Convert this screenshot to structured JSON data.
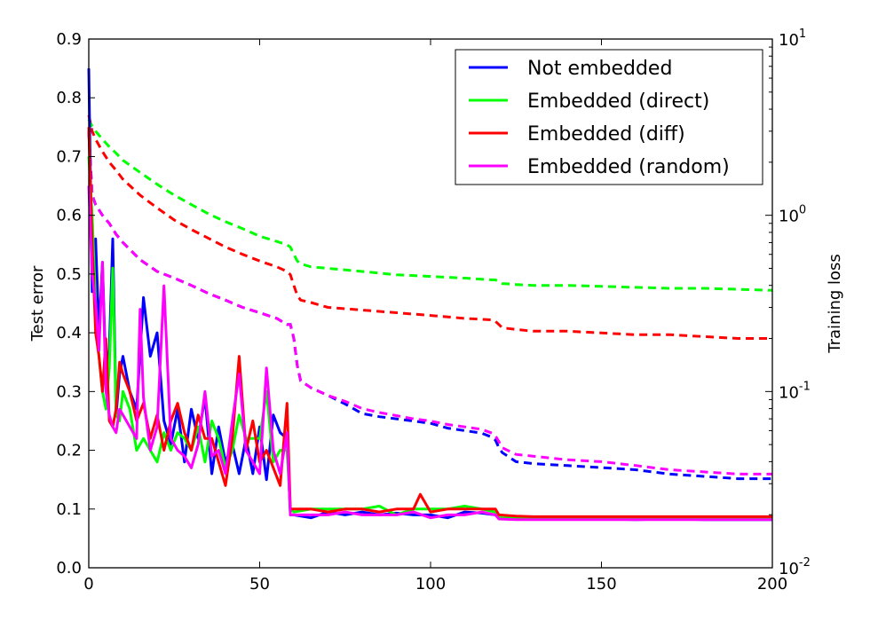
{
  "chart_data": {
    "type": "line",
    "xlabel": "",
    "ylabel": "Test error",
    "y2label": "Training loss",
    "xlim": [
      0,
      200
    ],
    "ylim": [
      0.0,
      0.9
    ],
    "y2lim_log10": [
      -2,
      1
    ],
    "y2scale": "log",
    "grid": false,
    "legend_position": "top-right",
    "x_ticks": [
      0,
      50,
      100,
      150,
      200
    ],
    "x_tick_labels": [
      "0",
      "50",
      "100",
      "150",
      "200"
    ],
    "y_ticks": [
      0.0,
      0.1,
      0.2,
      0.3,
      0.4,
      0.5,
      0.6,
      0.7,
      0.8,
      0.9
    ],
    "y_tick_labels": [
      "0.0",
      "0.1",
      "0.2",
      "0.3",
      "0.4",
      "0.5",
      "0.6",
      "0.7",
      "0.8",
      "0.9"
    ],
    "y2_ticks": [
      -2,
      -1,
      0,
      1
    ],
    "y2_tick_bases": [
      "10",
      "10",
      "10",
      "10"
    ],
    "y2_tick_exponents": [
      "-2",
      "-1",
      "0",
      "1"
    ],
    "colors": {
      "not_embedded": "#0000ff",
      "direct": "#00ff00",
      "diff": "#ff0000",
      "random": "#ff00ff"
    },
    "series": [
      {
        "name": "Not embedded",
        "color": "#0000ff",
        "test_error": {
          "x": [
            0,
            1,
            2,
            3,
            4,
            5,
            6,
            7,
            8,
            9,
            10,
            12,
            14,
            16,
            18,
            20,
            22,
            24,
            26,
            28,
            30,
            32,
            34,
            36,
            38,
            40,
            42,
            44,
            46,
            48,
            50,
            52,
            54,
            56,
            58,
            59,
            60,
            65,
            70,
            75,
            80,
            85,
            90,
            95,
            100,
            105,
            110,
            115,
            119,
            120,
            125,
            130,
            140,
            150,
            160,
            170,
            180,
            190,
            200
          ],
          "y": [
            0.85,
            0.47,
            0.56,
            0.4,
            0.52,
            0.33,
            0.37,
            0.56,
            0.26,
            0.33,
            0.36,
            0.3,
            0.27,
            0.46,
            0.36,
            0.4,
            0.25,
            0.21,
            0.27,
            0.18,
            0.27,
            0.22,
            0.29,
            0.16,
            0.24,
            0.18,
            0.21,
            0.16,
            0.22,
            0.16,
            0.24,
            0.15,
            0.26,
            0.23,
            0.22,
            0.09,
            0.09,
            0.085,
            0.095,
            0.09,
            0.095,
            0.09,
            0.093,
            0.09,
            0.09,
            0.085,
            0.095,
            0.093,
            0.09,
            0.085,
            0.083,
            0.083,
            0.083,
            0.083,
            0.082,
            0.083,
            0.082,
            0.082,
            0.082
          ]
        },
        "training_loss": {
          "x": [
            0,
            1,
            2,
            4,
            6,
            8,
            10,
            15,
            20,
            25,
            30,
            35,
            40,
            45,
            50,
            55,
            58,
            59,
            60,
            61,
            62,
            65,
            70,
            75,
            80,
            85,
            90,
            95,
            100,
            105,
            110,
            115,
            118,
            119,
            120,
            121,
            125,
            130,
            140,
            150,
            160,
            170,
            180,
            190,
            200
          ],
          "y": [
            3.0,
            1.3,
            1.15,
            1.0,
            0.9,
            0.78,
            0.7,
            0.56,
            0.48,
            0.44,
            0.4,
            0.36,
            0.33,
            0.3,
            0.28,
            0.26,
            0.24,
            0.24,
            0.2,
            0.14,
            0.115,
            0.105,
            0.095,
            0.085,
            0.075,
            0.072,
            0.07,
            0.068,
            0.066,
            0.062,
            0.06,
            0.058,
            0.055,
            0.053,
            0.048,
            0.045,
            0.04,
            0.039,
            0.038,
            0.037,
            0.036,
            0.034,
            0.033,
            0.032,
            0.032
          ]
        }
      },
      {
        "name": "Embedded (direct)",
        "color": "#00ff00",
        "test_error": {
          "x": [
            0,
            1,
            2,
            3,
            4,
            5,
            6,
            7,
            8,
            9,
            10,
            12,
            14,
            16,
            18,
            20,
            22,
            24,
            26,
            28,
            30,
            32,
            34,
            36,
            38,
            40,
            42,
            44,
            46,
            48,
            50,
            52,
            54,
            56,
            58,
            59,
            60,
            65,
            70,
            75,
            80,
            85,
            90,
            95,
            100,
            105,
            110,
            115,
            119,
            120,
            125,
            130,
            140,
            150,
            160,
            170,
            180,
            190,
            200
          ],
          "y": [
            0.7,
            0.6,
            0.45,
            0.36,
            0.3,
            0.27,
            0.34,
            0.51,
            0.26,
            0.25,
            0.3,
            0.27,
            0.2,
            0.22,
            0.2,
            0.18,
            0.23,
            0.2,
            0.23,
            0.22,
            0.2,
            0.24,
            0.18,
            0.25,
            0.22,
            0.17,
            0.2,
            0.26,
            0.22,
            0.22,
            0.22,
            0.3,
            0.18,
            0.2,
            0.2,
            0.1,
            0.095,
            0.1,
            0.1,
            0.1,
            0.1,
            0.105,
            0.09,
            0.1,
            0.1,
            0.1,
            0.105,
            0.1,
            0.095,
            0.085,
            0.085,
            0.085,
            0.085,
            0.085,
            0.085,
            0.085,
            0.085,
            0.085,
            0.085
          ]
        },
        "training_loss": {
          "x": [
            0,
            1,
            2,
            4,
            6,
            8,
            10,
            15,
            20,
            25,
            30,
            35,
            40,
            45,
            50,
            55,
            58,
            59,
            60,
            61,
            62,
            65,
            70,
            80,
            90,
            100,
            110,
            118,
            119,
            120,
            121,
            125,
            130,
            140,
            150,
            160,
            170,
            180,
            190,
            200
          ],
          "y": [
            3.5,
            3.2,
            3.0,
            2.7,
            2.45,
            2.25,
            2.05,
            1.75,
            1.5,
            1.3,
            1.15,
            1.02,
            0.92,
            0.84,
            0.76,
            0.71,
            0.68,
            0.66,
            0.6,
            0.55,
            0.53,
            0.51,
            0.5,
            0.48,
            0.46,
            0.45,
            0.44,
            0.43,
            0.43,
            0.42,
            0.41,
            0.405,
            0.4,
            0.4,
            0.395,
            0.39,
            0.385,
            0.385,
            0.38,
            0.375
          ]
        }
      },
      {
        "name": "Embedded (diff)",
        "color": "#ff0000",
        "test_error": {
          "x": [
            0,
            1,
            2,
            3,
            4,
            5,
            6,
            7,
            8,
            9,
            10,
            12,
            14,
            16,
            18,
            20,
            22,
            24,
            26,
            28,
            30,
            32,
            34,
            36,
            38,
            40,
            42,
            44,
            46,
            48,
            50,
            52,
            54,
            56,
            58,
            59,
            60,
            65,
            70,
            75,
            80,
            85,
            90,
            95,
            97,
            100,
            105,
            110,
            115,
            119,
            120,
            125,
            130,
            140,
            150,
            160,
            170,
            180,
            190,
            200
          ],
          "y": [
            0.75,
            0.55,
            0.4,
            0.36,
            0.3,
            0.39,
            0.25,
            0.24,
            0.27,
            0.35,
            0.33,
            0.3,
            0.25,
            0.28,
            0.22,
            0.26,
            0.2,
            0.25,
            0.28,
            0.23,
            0.2,
            0.26,
            0.22,
            0.22,
            0.18,
            0.14,
            0.22,
            0.36,
            0.2,
            0.25,
            0.18,
            0.2,
            0.17,
            0.14,
            0.28,
            0.1,
            0.1,
            0.1,
            0.095,
            0.1,
            0.1,
            0.095,
            0.1,
            0.1,
            0.125,
            0.095,
            0.1,
            0.1,
            0.1,
            0.1,
            0.09,
            0.088,
            0.087,
            0.087,
            0.087,
            0.087,
            0.087,
            0.087,
            0.087,
            0.087
          ]
        },
        "training_loss": {
          "x": [
            0,
            1,
            2,
            4,
            6,
            8,
            10,
            15,
            20,
            25,
            30,
            35,
            40,
            45,
            50,
            55,
            58,
            59,
            60,
            61,
            62,
            65,
            70,
            80,
            90,
            100,
            110,
            118,
            119,
            120,
            121,
            125,
            130,
            140,
            150,
            160,
            170,
            180,
            190,
            200
          ],
          "y": [
            3.7,
            3.0,
            2.7,
            2.3,
            2.0,
            1.8,
            1.6,
            1.3,
            1.1,
            0.94,
            0.83,
            0.74,
            0.66,
            0.6,
            0.55,
            0.51,
            0.48,
            0.46,
            0.4,
            0.35,
            0.33,
            0.32,
            0.3,
            0.29,
            0.28,
            0.27,
            0.26,
            0.255,
            0.25,
            0.24,
            0.23,
            0.225,
            0.22,
            0.22,
            0.215,
            0.21,
            0.21,
            0.205,
            0.2,
            0.2
          ]
        }
      },
      {
        "name": "Embedded (random)",
        "color": "#ff00ff",
        "test_error": {
          "x": [
            0,
            1,
            2,
            3,
            4,
            5,
            6,
            7,
            8,
            9,
            10,
            12,
            14,
            15,
            16,
            18,
            20,
            22,
            24,
            26,
            28,
            30,
            32,
            34,
            36,
            38,
            40,
            42,
            44,
            46,
            48,
            50,
            52,
            54,
            56,
            58,
            59,
            60,
            65,
            70,
            75,
            80,
            85,
            90,
            95,
            100,
            105,
            110,
            115,
            119,
            120,
            125,
            130,
            140,
            150,
            160,
            170,
            180,
            190,
            200
          ],
          "y": [
            0.65,
            0.5,
            0.45,
            0.37,
            0.52,
            0.3,
            0.26,
            0.24,
            0.23,
            0.27,
            0.26,
            0.24,
            0.22,
            0.44,
            0.29,
            0.2,
            0.24,
            0.48,
            0.22,
            0.2,
            0.19,
            0.17,
            0.21,
            0.3,
            0.19,
            0.2,
            0.16,
            0.25,
            0.33,
            0.2,
            0.18,
            0.16,
            0.34,
            0.2,
            0.16,
            0.23,
            0.09,
            0.09,
            0.09,
            0.09,
            0.095,
            0.09,
            0.09,
            0.09,
            0.095,
            0.085,
            0.09,
            0.09,
            0.095,
            0.09,
            0.083,
            0.082,
            0.082,
            0.082,
            0.082,
            0.082,
            0.082,
            0.082,
            0.082,
            0.082
          ]
        },
        "training_loss": {
          "x": [
            0,
            1,
            2,
            4,
            6,
            8,
            10,
            15,
            20,
            25,
            30,
            35,
            40,
            45,
            50,
            55,
            58,
            59,
            60,
            61,
            62,
            65,
            70,
            75,
            80,
            85,
            90,
            95,
            100,
            105,
            110,
            115,
            118,
            119,
            120,
            121,
            125,
            130,
            140,
            150,
            160,
            170,
            180,
            190,
            200
          ],
          "y": [
            3.0,
            1.3,
            1.15,
            1.0,
            0.9,
            0.78,
            0.7,
            0.56,
            0.48,
            0.44,
            0.4,
            0.36,
            0.33,
            0.3,
            0.28,
            0.26,
            0.24,
            0.24,
            0.2,
            0.14,
            0.115,
            0.105,
            0.095,
            0.088,
            0.08,
            0.076,
            0.073,
            0.07,
            0.068,
            0.065,
            0.063,
            0.061,
            0.058,
            0.056,
            0.052,
            0.048,
            0.044,
            0.043,
            0.041,
            0.04,
            0.038,
            0.036,
            0.035,
            0.034,
            0.034
          ]
        }
      }
    ]
  }
}
